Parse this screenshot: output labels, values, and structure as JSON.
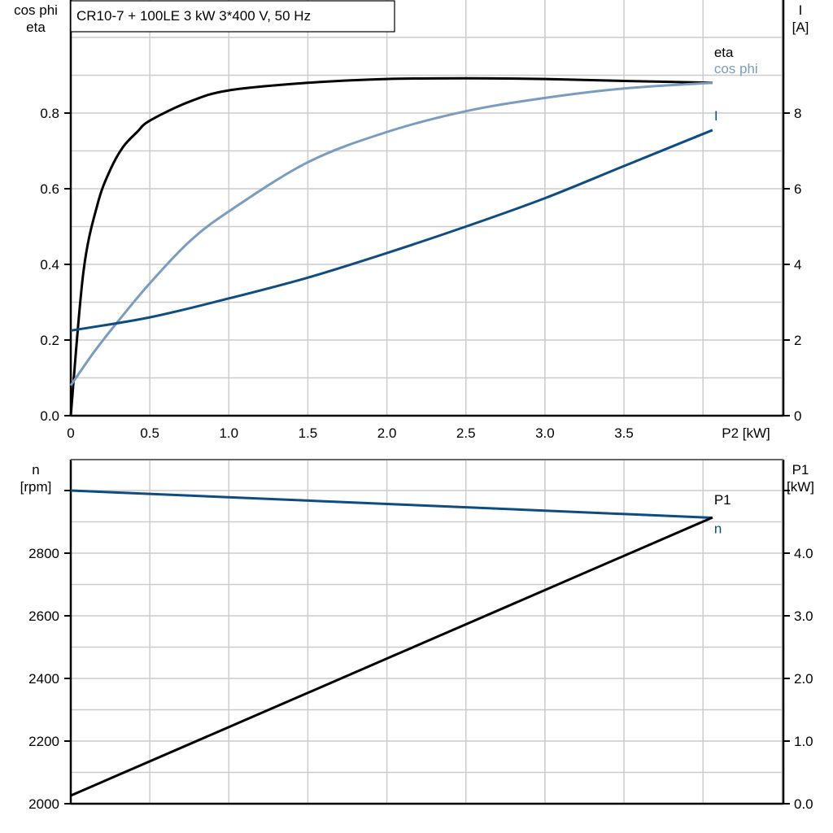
{
  "chart_data": [
    {
      "type": "line",
      "title": "CR10-7 + 100LE   3 kW   3*400 V, 50 Hz",
      "xlabel": "P2 [kW]",
      "ylabel_left": [
        "cos phi",
        "eta"
      ],
      "ylabel_right": [
        "I",
        "[A]"
      ],
      "xlim": [
        0,
        4.5
      ],
      "ylim_left": [
        0,
        1.1
      ],
      "ylim_right": [
        0,
        11
      ],
      "x_ticks": [
        "0",
        "0.5",
        "1.0",
        "1.5",
        "2.0",
        "2.5",
        "3.0",
        "3.5"
      ],
      "y_ticks_left": [
        "0.0",
        "0.2",
        "0.4",
        "0.6",
        "0.8"
      ],
      "y_ticks_right": [
        "0",
        "2",
        "4",
        "6",
        "8"
      ],
      "grid": true,
      "series": [
        {
          "name": "eta",
          "axis": "left",
          "color": "#000000",
          "x": [
            0,
            0.08,
            0.17,
            0.25,
            0.33,
            0.42,
            0.5,
            0.75,
            1.0,
            1.5,
            2.0,
            2.5,
            3.0,
            3.5,
            4.06
          ],
          "y": [
            0,
            0.38,
            0.56,
            0.65,
            0.71,
            0.75,
            0.78,
            0.83,
            0.86,
            0.88,
            0.89,
            0.892,
            0.89,
            0.885,
            0.88
          ]
        },
        {
          "name": "cos phi",
          "axis": "left",
          "color": "#7a9cc0",
          "x": [
            0,
            0.15,
            0.3,
            0.5,
            0.75,
            1.0,
            1.5,
            2.0,
            2.5,
            3.0,
            3.5,
            4.06
          ],
          "y": [
            0.08,
            0.17,
            0.25,
            0.35,
            0.46,
            0.54,
            0.67,
            0.75,
            0.805,
            0.84,
            0.865,
            0.88
          ]
        },
        {
          "name": "I",
          "axis": "right",
          "color": "#0f4c81",
          "x": [
            0,
            0.5,
            1.0,
            1.5,
            2.0,
            2.5,
            3.0,
            3.5,
            4.06
          ],
          "y": [
            2.25,
            2.6,
            3.1,
            3.65,
            4.3,
            5.0,
            5.75,
            6.6,
            7.55
          ]
        }
      ]
    },
    {
      "type": "line",
      "xlim": [
        0,
        4.5
      ],
      "ylabel_left": [
        "n",
        "[rpm]"
      ],
      "ylabel_right": [
        "P1",
        "[kW]"
      ],
      "ylim_left": [
        2000,
        3100
      ],
      "ylim_right": [
        0,
        5.5
      ],
      "y_ticks_left": [
        "2000",
        "2200",
        "2400",
        "2600",
        "2800"
      ],
      "y_ticks_right": [
        "0.0",
        "1.0",
        "2.0",
        "3.0",
        "4.0"
      ],
      "grid": true,
      "series": [
        {
          "name": "n",
          "axis": "left",
          "color": "#0f4c81",
          "x": [
            0,
            4.06
          ],
          "y": [
            3000,
            2913
          ]
        },
        {
          "name": "P1",
          "axis": "right",
          "color": "#000000",
          "x": [
            0,
            4.06
          ],
          "y": [
            0.13,
            4.57
          ]
        }
      ]
    }
  ]
}
